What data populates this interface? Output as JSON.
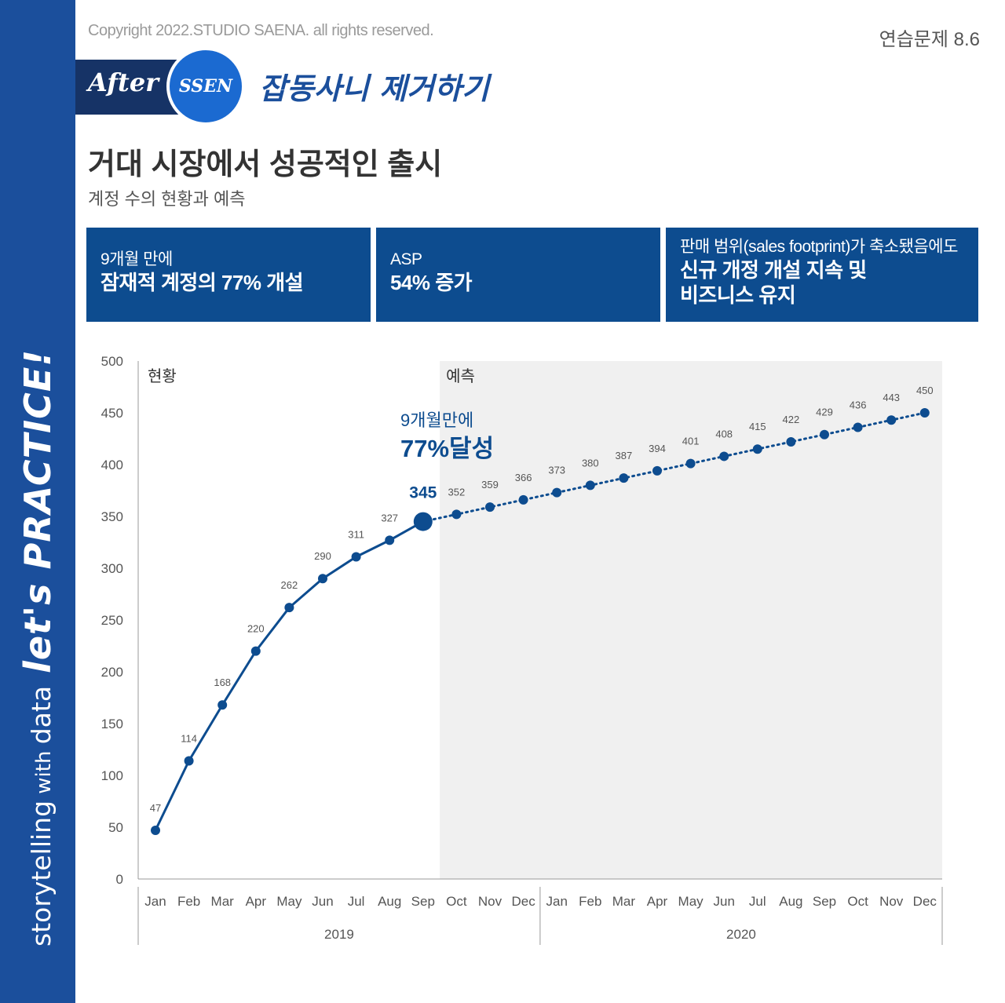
{
  "copyright": "Copyright 2022.STUDIO SAENA. all rights reserved.",
  "exercise_label": "연습문제 8.6",
  "badge": {
    "after": "After",
    "ssen": "SSEN"
  },
  "headline": "잡동사니 제거하기",
  "title": "거대 시장에서 성공적인 출시",
  "subtitle": "계정 수의 현황과 예측",
  "boxes": [
    {
      "small": "9개월 만에",
      "big": [
        "잠재적 계정의 77% 개설"
      ]
    },
    {
      "small": "ASP",
      "big": [
        "54% 증가"
      ]
    },
    {
      "small": "판매 범위(sales footprint)가 축소됐음에도",
      "big": [
        "신규 개정 개설 지속 및",
        "비즈니스 유지"
      ]
    }
  ],
  "sidebar": {
    "part1": "storytelling",
    "part2": " with ",
    "part3": "data",
    "part4": "let's PRACTICE!"
  },
  "colors": {
    "accent": "#0d4c8f",
    "sidebar": "#1b4f9c",
    "forecast_bg": "#f0f0f0",
    "banner": "#163366",
    "circle": "#1b6ad1"
  },
  "chart_data": {
    "type": "line",
    "ylim": [
      0,
      500
    ],
    "yticks": [
      0,
      50,
      100,
      150,
      200,
      250,
      300,
      350,
      400,
      450,
      500
    ],
    "months": [
      "Jan",
      "Feb",
      "Mar",
      "Apr",
      "May",
      "Jun",
      "Jul",
      "Aug",
      "Sep",
      "Oct",
      "Nov",
      "Dec",
      "Jan",
      "Feb",
      "Mar",
      "Apr",
      "May",
      "Jun",
      "Jul",
      "Aug",
      "Sep",
      "Oct",
      "Nov",
      "Dec"
    ],
    "years": [
      "2019",
      "2020"
    ],
    "values": [
      47,
      114,
      168,
      220,
      262,
      290,
      311,
      327,
      345,
      352,
      359,
      366,
      373,
      380,
      387,
      394,
      401,
      408,
      415,
      422,
      429,
      436,
      443,
      450
    ],
    "actual_count": 9,
    "region_labels": {
      "actual": "현황",
      "forecast": "예측"
    },
    "annotation": {
      "line1": "9개월만에",
      "line2": "77%달성"
    },
    "highlight_label": "345",
    "grid": false
  }
}
